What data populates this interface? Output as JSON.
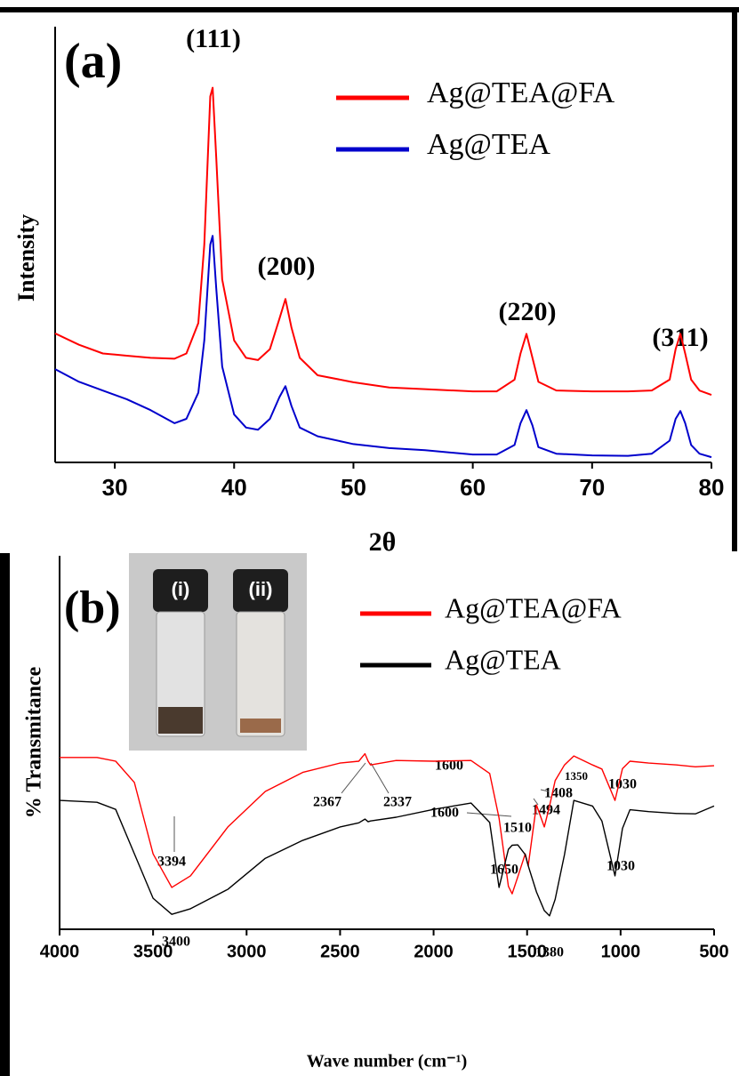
{
  "chart_data": [
    {
      "type": "line",
      "panel_label": "(a)",
      "xlabel": "2θ",
      "ylabel": "Intensity",
      "x": [
        25,
        27,
        29,
        31,
        33,
        35,
        36,
        37,
        37.5,
        38,
        38.2,
        38.5,
        39,
        40,
        41,
        42,
        43,
        43.8,
        44.3,
        44.8,
        45.5,
        47,
        50,
        53,
        56,
        60,
        62,
        63.5,
        64,
        64.5,
        65,
        65.5,
        67,
        70,
        73,
        75,
        76.5,
        77,
        77.4,
        77.8,
        78.3,
        79,
        80
      ],
      "series": [
        {
          "name": "Ag@TEA@FA",
          "color": "#ff0000",
          "values": [
            29.6,
            27,
            25,
            24.5,
            24,
            23.8,
            25,
            32,
            50,
            84,
            86,
            70,
            42,
            28,
            24,
            23.5,
            26,
            33,
            37.5,
            31,
            24,
            20,
            18.4,
            17.2,
            16.8,
            16.3,
            16.3,
            19,
            25,
            29.5,
            24,
            18.5,
            16.5,
            16.3,
            16.3,
            16.5,
            19,
            26,
            29.5,
            25,
            19,
            16.5,
            15.5
          ]
        },
        {
          "name": "Ag@TEA",
          "color": "#0000cc",
          "values": [
            21.4,
            18.5,
            16.5,
            14.5,
            12,
            9,
            10,
            16,
            28,
            50,
            52,
            40,
            22,
            11,
            8,
            7.5,
            10,
            15,
            17.5,
            13,
            8,
            6,
            4.2,
            3.3,
            2.8,
            1.8,
            1.8,
            4,
            9,
            12,
            8.5,
            3.5,
            2,
            1.6,
            1.5,
            2,
            5,
            10,
            11.8,
            9,
            4,
            2,
            1.2
          ]
        }
      ],
      "xlim": [
        25,
        80
      ],
      "xticks": [
        30,
        40,
        50,
        60,
        70,
        80
      ],
      "ylim": [
        0,
        100
      ],
      "legend": "upper right",
      "annotations": [
        "(111)",
        "(200)",
        "(220)",
        "(311)"
      ]
    },
    {
      "type": "line",
      "panel_label": "(b)",
      "xlabel": "Wave number (cm⁻¹)",
      "ylabel": "% Transmitance",
      "inset_labels": [
        "(i)",
        "(ii)"
      ],
      "x": [
        4000,
        3800,
        3700,
        3600,
        3500,
        3400,
        3300,
        3100,
        2900,
        2700,
        2500,
        2400,
        2367,
        2350,
        2337,
        2200,
        2000,
        1800,
        1700,
        1650,
        1600,
        1580,
        1550,
        1510,
        1494,
        1450,
        1408,
        1380,
        1350,
        1300,
        1250,
        1150,
        1100,
        1030,
        990,
        950,
        850,
        700,
        600,
        500
      ],
      "series": [
        {
          "name": "Ag@TEA@FA",
          "color": "#ff0000",
          "values": [
            46,
            46,
            45,
            39.3,
            20.2,
            11.2,
            14.3,
            27.4,
            36.9,
            42,
            44.5,
            45,
            47,
            45,
            44,
            45.2,
            45,
            45.2,
            41.7,
            29.8,
            11.5,
            9.5,
            14,
            20.2,
            17,
            33.3,
            27.4,
            33,
            39.8,
            44,
            46.4,
            44,
            42.9,
            34.5,
            43,
            45,
            44.5,
            44,
            43.5,
            43.8
          ]
        },
        {
          "name": "Ag@TEA",
          "color": "#000000",
          "values": [
            34.5,
            34,
            32.1,
            20.2,
            8.3,
            4,
            5.5,
            10.7,
            19,
            23.8,
            27.4,
            28.5,
            29.5,
            28.8,
            29,
            30,
            32.1,
            33.8,
            28.6,
            11.2,
            21.4,
            22.5,
            22.6,
            20,
            17,
            10,
            5,
            3.6,
            8,
            20,
            34.5,
            33,
            29,
            14.3,
            27,
            32,
            31.5,
            31,
            30.9,
            33
          ]
        }
      ],
      "xlim": [
        4000,
        500
      ],
      "xticks": [
        4000,
        3500,
        3000,
        2500,
        2000,
        1500,
        1000,
        500
      ],
      "ylim": [
        0,
        100
      ],
      "legend": "upper right",
      "annotations": [
        "1600",
        "2367",
        "2337",
        "1600",
        "1510",
        "1494",
        "1350",
        "1408",
        "1030",
        "3394",
        "1650",
        "1030",
        "3400",
        "1380"
      ]
    }
  ]
}
